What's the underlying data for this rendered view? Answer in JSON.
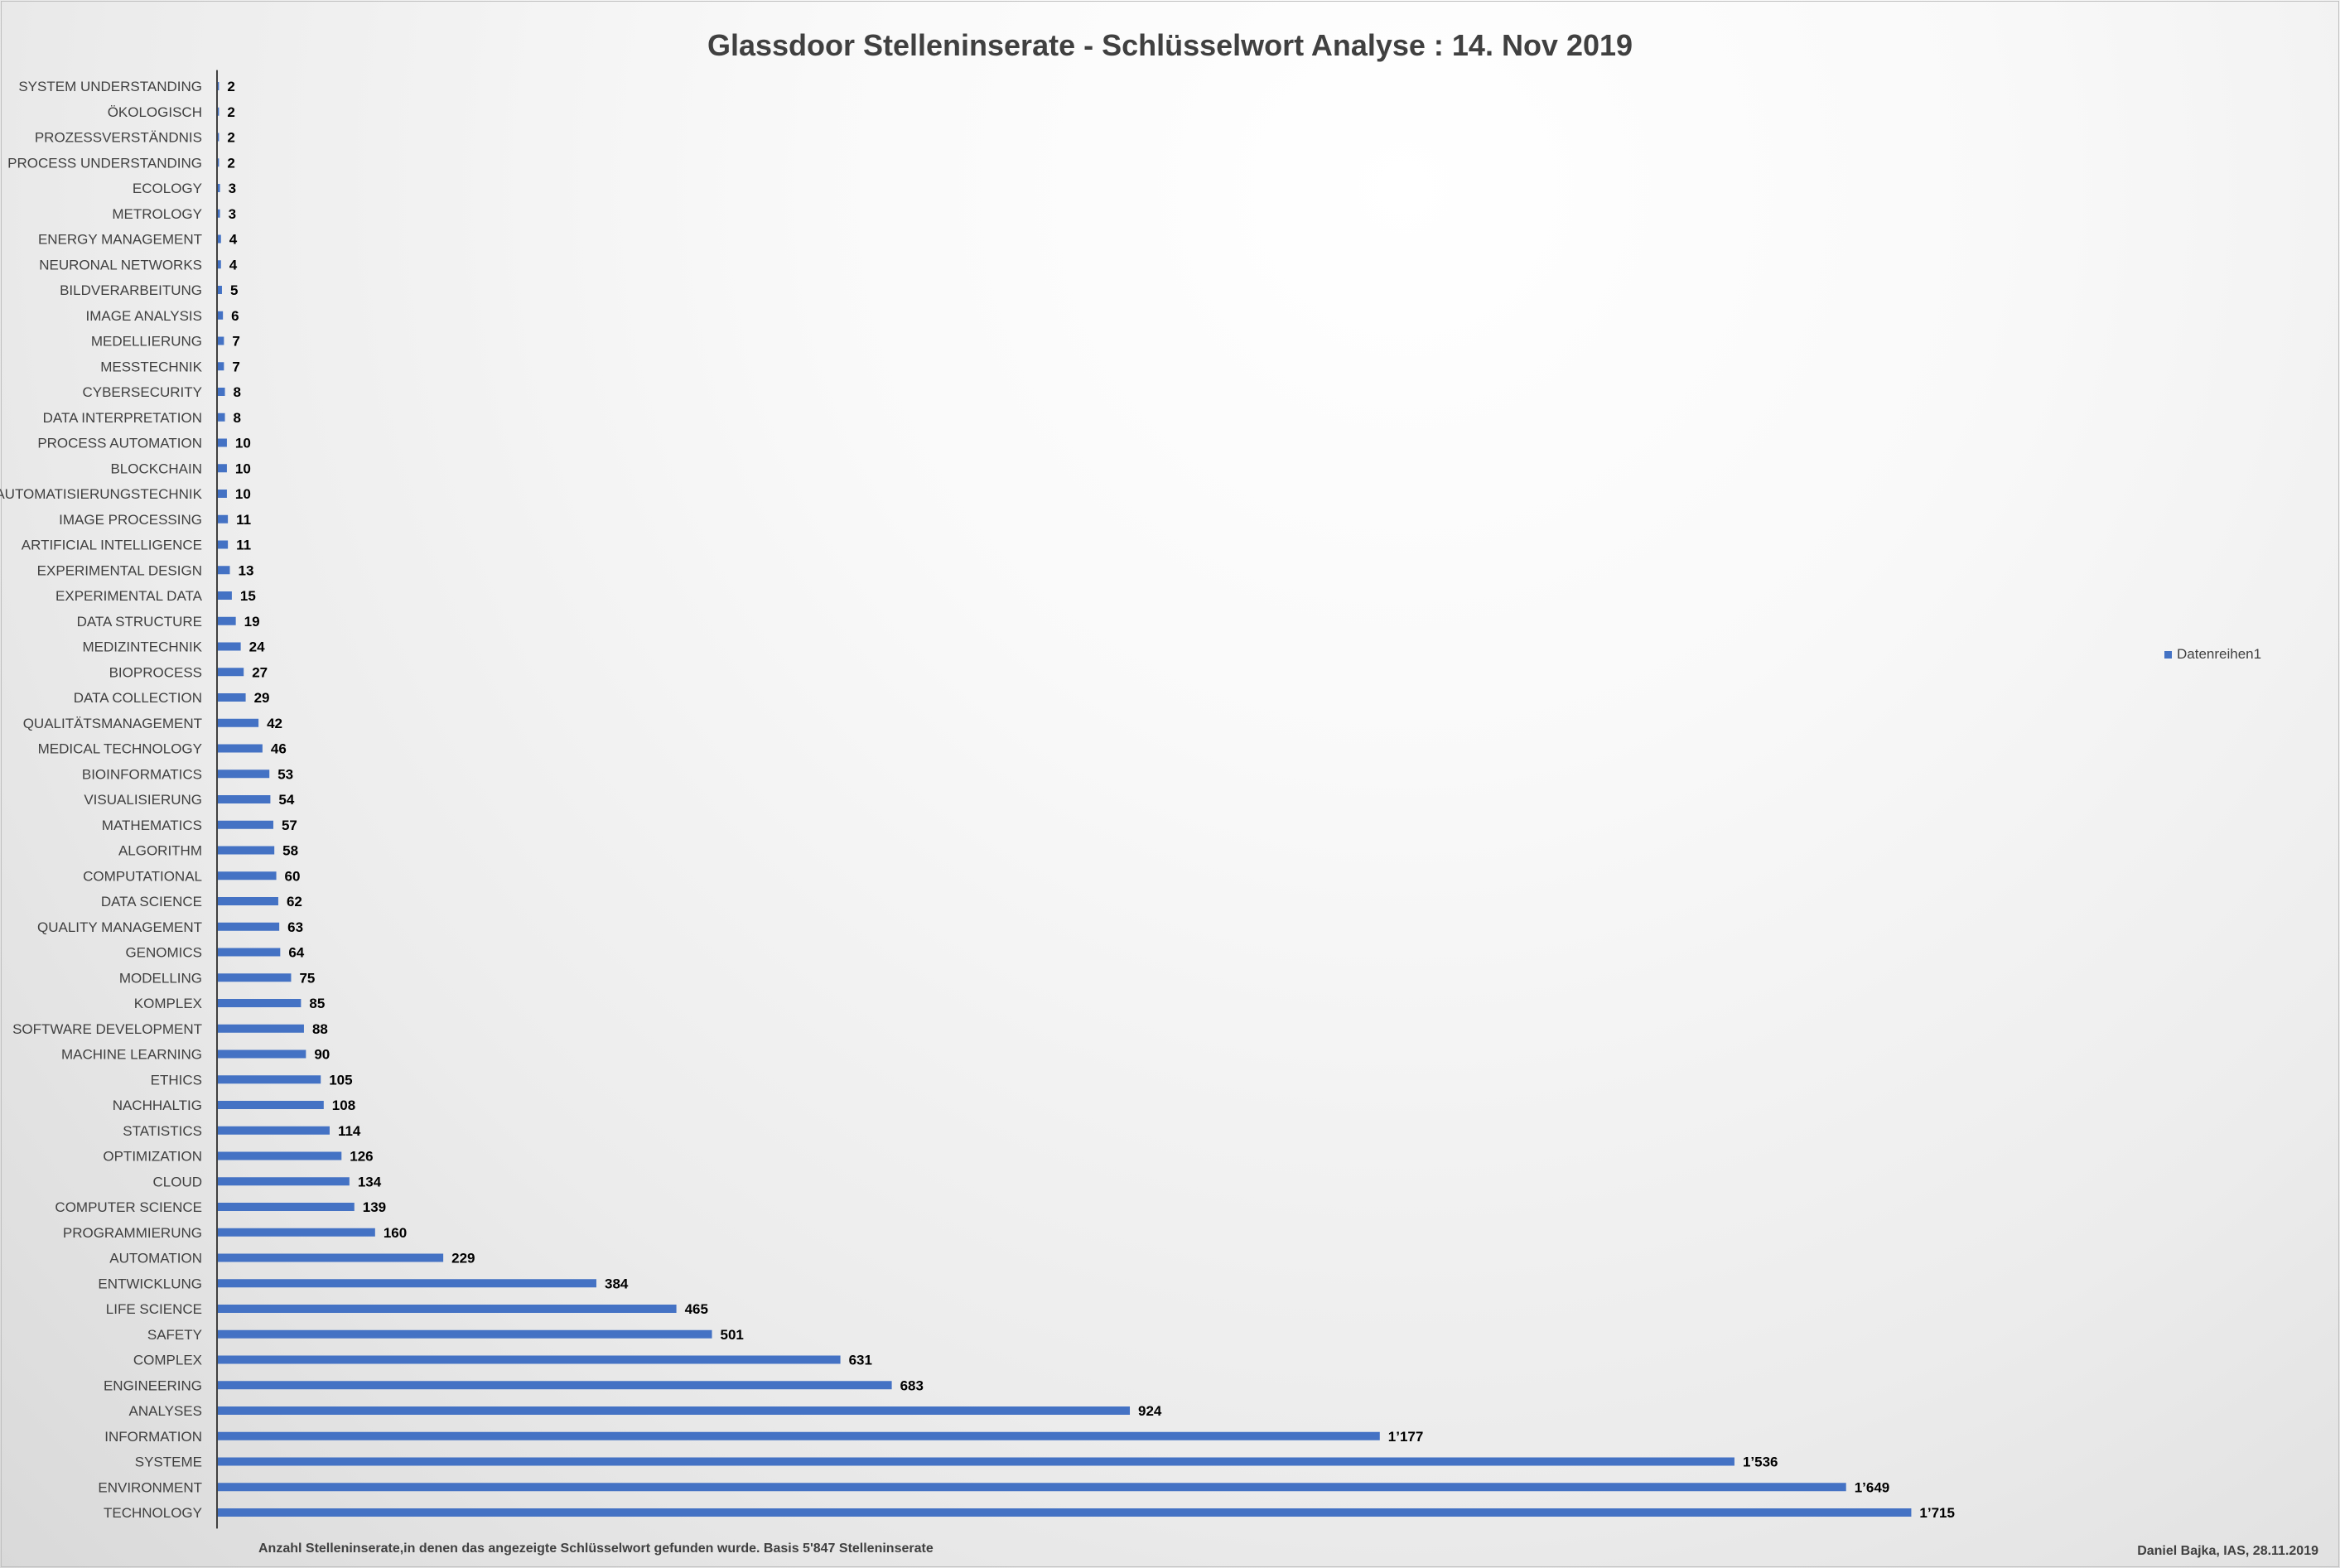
{
  "chart_data": {
    "type": "bar",
    "orientation": "horizontal",
    "title": "Glassdoor Stelleninserate - Schlüsselwort Analyse : 14. Nov 2019",
    "categories": [
      "SYSTEM UNDERSTANDING",
      "ÖKOLOGISCH",
      "PROZESSVERSTÄNDNIS",
      "PROCESS UNDERSTANDING",
      "ECOLOGY",
      "METROLOGY",
      "ENERGY MANAGEMENT",
      "NEURONAL NETWORKS",
      "BILDVERARBEITUNG",
      "IMAGE ANALYSIS",
      "MEDELLIERUNG",
      "MESSTECHNIK",
      "CYBERSECURITY",
      "DATA INTERPRETATION",
      "PROCESS AUTOMATION",
      "BLOCKCHAIN",
      "AUTOMATISIERUNGSTECHNIK",
      "IMAGE PROCESSING",
      "ARTIFICIAL INTELLIGENCE",
      "EXPERIMENTAL DESIGN",
      "EXPERIMENTAL DATA",
      "DATA STRUCTURE",
      "MEDIZINTECHNIK",
      "BIOPROCESS",
      "DATA COLLECTION",
      "QUALITÄTSMANAGEMENT",
      "MEDICAL TECHNOLOGY",
      "BIOINFORMATICS",
      "VISUALISIERUNG",
      "MATHEMATICS",
      "ALGORITHM",
      "COMPUTATIONAL",
      "DATA SCIENCE",
      "QUALITY MANAGEMENT",
      "GENOMICS",
      "MODELLING",
      "KOMPLEX",
      "SOFTWARE DEVELOPMENT",
      "MACHINE LEARNING",
      "ETHICS",
      "NACHHALTIG",
      "STATISTICS",
      "OPTIMIZATION",
      "CLOUD",
      "COMPUTER SCIENCE",
      "PROGRAMMIERUNG",
      "AUTOMATION",
      "ENTWICKLUNG",
      "LIFE SCIENCE",
      "SAFETY",
      "COMPLEX",
      "ENGINEERING",
      "ANALYSES",
      "INFORMATION",
      "SYSTEME",
      "ENVIRONMENT",
      "TECHNOLOGY"
    ],
    "series": [
      {
        "name": "Datenreihen1",
        "values": [
          2,
          2,
          2,
          2,
          3,
          3,
          4,
          4,
          5,
          6,
          7,
          7,
          8,
          8,
          10,
          10,
          10,
          11,
          11,
          13,
          15,
          19,
          24,
          27,
          29,
          42,
          46,
          53,
          54,
          57,
          58,
          60,
          62,
          63,
          64,
          75,
          85,
          88,
          90,
          105,
          108,
          114,
          126,
          134,
          139,
          160,
          229,
          384,
          465,
          501,
          631,
          683,
          924,
          1177,
          1536,
          1649,
          1715
        ],
        "labels": [
          "2",
          "2",
          "2",
          "2",
          "3",
          "3",
          "4",
          "4",
          "5",
          "6",
          "7",
          "7",
          "8",
          "8",
          "10",
          "10",
          "10",
          "11",
          "11",
          "13",
          "15",
          "19",
          "24",
          "27",
          "29",
          "42",
          "46",
          "53",
          "54",
          "57",
          "58",
          "60",
          "62",
          "63",
          "64",
          "75",
          "85",
          "88",
          "90",
          "105",
          "108",
          "114",
          "126",
          "134",
          "139",
          "160",
          "229",
          "384",
          "465",
          "501",
          "631",
          "683",
          "924",
          "1’177",
          "1’536",
          "1’649",
          "1’715"
        ]
      }
    ],
    "xlim": [
      0,
      1910
    ],
    "grid": false,
    "legend_position": "right",
    "bar_color": "#4472c4"
  },
  "legend": {
    "label": "Datenreihen1"
  },
  "footnote": "Anzahl Stelleninserate,in denen das angezeigte Schlüsselwort gefunden wurde. Basis 5'847 Stelleninserate",
  "credit": "Daniel Bajka, IAS, 28.11.2019"
}
